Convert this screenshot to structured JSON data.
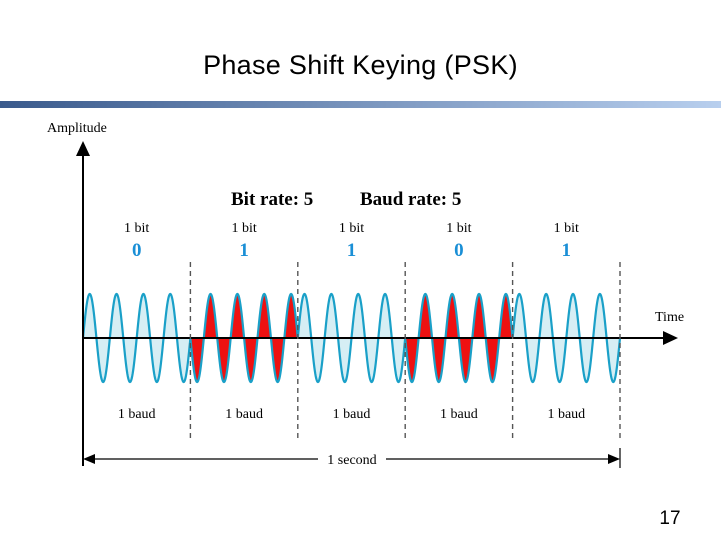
{
  "slide": {
    "title": "Phase Shift Keying (PSK)",
    "page_number": "17"
  },
  "colors": {
    "bar_gradient_start": "#3a5a8c",
    "bar_gradient_end": "#b8cfee",
    "wave_stroke": "#1aa0c8",
    "wave_fill_light": "#d6eef4",
    "wave_fill_red": "#ee1111",
    "bit_value_color": "#1a8fd6",
    "axis_color": "#000000",
    "divider_color": "#555555"
  },
  "diagram": {
    "y_axis_label": "Amplitude",
    "x_axis_label": "Time",
    "bit_rate_label": "Bit rate: 5",
    "baud_rate_label": "Baud rate: 5",
    "duration_label": "1 second",
    "segments": [
      {
        "bit_label": "1 bit",
        "bit_value": "0",
        "baud_label": "1 baud",
        "phase": 0
      },
      {
        "bit_label": "1 bit",
        "bit_value": "1",
        "baud_label": "1 baud",
        "phase": 180
      },
      {
        "bit_label": "1 bit",
        "bit_value": "1",
        "baud_label": "1 baud",
        "phase": 0
      },
      {
        "bit_label": "1 bit",
        "bit_value": "0",
        "baud_label": "1 baud",
        "phase": 180
      },
      {
        "bit_label": "1 bit",
        "bit_value": "1",
        "baud_label": "1 baud",
        "phase": 0
      }
    ],
    "cycles_per_segment": 4
  }
}
